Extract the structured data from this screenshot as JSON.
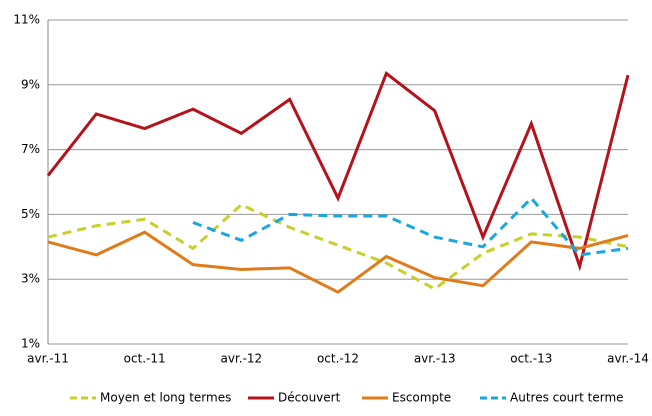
{
  "chart_data": {
    "type": "line",
    "categories": [
      "avr.-11",
      null,
      "oct.-11",
      null,
      "avr.-12",
      null,
      "oct.-12",
      null,
      "avr.-13",
      null,
      "oct.-13",
      null,
      "avr.-14"
    ],
    "series": [
      {
        "name": "Moyen et long termes",
        "color": "#c8cf2a",
        "dash": true,
        "values": [
          4.3,
          4.65,
          4.85,
          3.95,
          5.3,
          4.6,
          4.05,
          3.5,
          2.7,
          3.8,
          4.4,
          4.3,
          4.0
        ]
      },
      {
        "name": "Découvert",
        "color": "#b5121b",
        "dash": false,
        "values": [
          6.2,
          8.1,
          7.65,
          8.25,
          7.5,
          8.55,
          5.5,
          9.35,
          8.2,
          4.3,
          7.8,
          3.4,
          9.3
        ]
      },
      {
        "name": "Escompte",
        "color": "#e07b1a",
        "dash": false,
        "values": [
          4.15,
          3.75,
          4.45,
          3.45,
          3.3,
          3.35,
          2.6,
          3.7,
          3.05,
          2.8,
          4.15,
          3.95,
          4.35
        ]
      },
      {
        "name": "Autres court terme",
        "color": "#1aa7e0",
        "dash": true,
        "values": [
          null,
          null,
          null,
          4.75,
          4.2,
          5.0,
          4.95,
          4.95,
          4.3,
          4.0,
          5.5,
          3.75,
          3.95
        ]
      }
    ],
    "ylim": [
      1,
      11
    ],
    "yticks": [
      {
        "value": 1,
        "label": "1%"
      },
      {
        "value": 3,
        "label": "3%"
      },
      {
        "value": 5,
        "label": "5%"
      },
      {
        "value": 7,
        "label": "7%"
      },
      {
        "value": 9,
        "label": "9%"
      },
      {
        "value": 11,
        "label": "11%"
      }
    ],
    "grid": true,
    "legend": "bottom"
  }
}
